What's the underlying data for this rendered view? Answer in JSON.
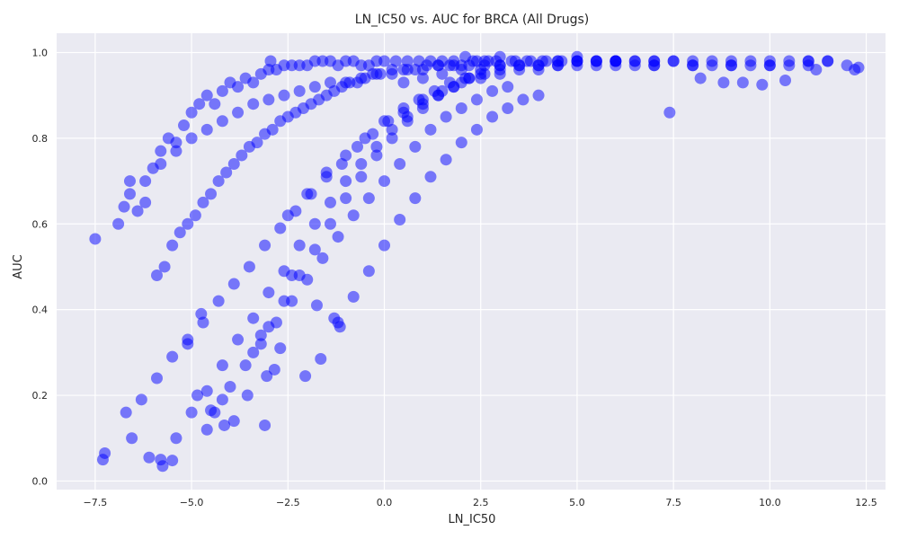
{
  "chart_data": {
    "type": "scatter",
    "title": "LN_IC50 vs. AUC for BRCA (All Drugs)",
    "xlabel": "LN_IC50",
    "ylabel": "AUC",
    "xlim": [
      -8.5,
      13.0
    ],
    "ylim": [
      -0.02,
      1.045
    ],
    "xticks": [
      -7.5,
      -5.0,
      -2.5,
      0.0,
      2.5,
      5.0,
      7.5,
      10.0,
      12.5
    ],
    "xtick_labels": [
      "−7.5",
      "−5.0",
      "−2.5",
      "0.0",
      "2.5",
      "5.0",
      "7.5",
      "10.0",
      "12.5"
    ],
    "yticks": [
      0.0,
      0.2,
      0.4,
      0.6,
      0.8,
      1.0
    ],
    "ytick_labels": [
      "0.0",
      "0.2",
      "0.4",
      "0.6",
      "0.8",
      "1.0"
    ],
    "grid": true,
    "legend": "none",
    "colors": {
      "points": "#0000ff",
      "plot_background": "#eaeaf2",
      "grid": "#ffffff",
      "text": "#262626"
    },
    "points_opacity": 0.5,
    "series": [
      {
        "x": [
          -7.5,
          -7.3,
          -7.25,
          -6.9,
          -6.75,
          -6.6,
          -6.55,
          -6.4,
          -6.2,
          -6.0,
          -5.8,
          -5.6,
          -5.4,
          -5.2,
          -5.0,
          -4.8,
          -4.6,
          -4.4,
          -4.2,
          -4.0,
          -3.8,
          -3.6,
          -3.4,
          -3.2,
          -3.0,
          -2.8,
          -2.6,
          -2.4,
          -2.2,
          -2.0,
          -1.8,
          -1.6,
          -1.4,
          -1.2,
          -1.0,
          -0.8,
          -0.6,
          -0.4,
          -0.2,
          0.0,
          0.3,
          0.6,
          0.9,
          1.2,
          1.5,
          1.8,
          2.1,
          2.4,
          2.7,
          3.0,
          3.4,
          3.8,
          4.2,
          4.6,
          5.0,
          5.5,
          6.0,
          6.5,
          7.0,
          7.5,
          8.0,
          8.5,
          9.0,
          9.5,
          10.0,
          10.5,
          11.0,
          11.5,
          12.0,
          12.3,
          -5.9,
          -5.7,
          -5.5,
          -5.3,
          -5.1,
          -4.9,
          -4.7,
          -4.5,
          -4.3,
          -4.1,
          -3.9,
          -3.7,
          -3.5,
          -3.3,
          -3.1,
          -2.9,
          -2.7,
          -2.5,
          -2.3,
          -2.1,
          -1.9,
          -1.7,
          -1.5,
          -1.3,
          -1.1,
          -0.9,
          -0.7,
          -0.5,
          -0.3,
          -0.1,
          0.2,
          0.5,
          0.8,
          1.1,
          1.4,
          1.7,
          2.0,
          2.3,
          2.6,
          2.9,
          3.3,
          3.7,
          4.1,
          4.5,
          5.0,
          5.5,
          6.0,
          -6.7,
          -6.3,
          -5.9,
          -5.5,
          -5.1,
          -4.7,
          -4.3,
          -3.9,
          -3.5,
          -3.1,
          -2.7,
          -2.3,
          -1.9,
          -1.5,
          -1.1,
          -0.7,
          -0.3,
          0.1,
          0.5,
          0.9,
          1.3,
          1.7,
          2.1,
          2.5,
          -5.8,
          -5.4,
          -5.0,
          -4.6,
          -4.2,
          -3.8,
          -3.4,
          -3.0,
          -2.6,
          -2.2,
          -1.8,
          -1.4,
          -1.0,
          -0.6,
          -0.2,
          0.2,
          0.6,
          1.0,
          1.4,
          1.8,
          2.2,
          2.6,
          3.0,
          -6.6,
          -6.2,
          -5.8,
          -5.4,
          -5.0,
          -4.6,
          -4.2,
          -3.8,
          -3.4,
          -3.0,
          -2.6,
          -2.2,
          -1.8,
          -1.4,
          -1.0,
          -0.6,
          -0.2,
          0.2,
          0.6,
          1.0,
          1.4,
          1.8,
          2.2,
          2.6,
          3.0,
          3.5,
          4.0,
          4.5,
          5.0,
          5.5,
          6.0,
          6.5,
          7.0,
          7.4,
          8.2,
          8.8,
          9.3,
          9.8,
          10.4,
          11.2,
          12.2,
          -4.6,
          -4.4,
          -4.2,
          -4.0,
          -3.6,
          -3.2,
          -2.8,
          -2.4,
          -2.0,
          -1.6,
          -1.2,
          -0.8,
          -0.4,
          0.0,
          0.4,
          0.8,
          1.2,
          1.6,
          2.0,
          2.4,
          2.8,
          3.2,
          -3.4,
          -3.0,
          -2.6,
          -2.2,
          -1.8,
          -1.4,
          -1.0,
          -0.6,
          -0.2,
          0.2,
          0.6,
          1.0,
          1.4,
          1.8,
          2.2,
          -2.5,
          -2.0,
          -1.5,
          -1.0,
          -0.5,
          0.0,
          0.5,
          1.0,
          1.5,
          2.0,
          2.5,
          3.0,
          3.5,
          4.0,
          4.5,
          5.0,
          6.0,
          7.0,
          8.0,
          9.0,
          10.0,
          11.0,
          0.5,
          1.0,
          1.5,
          2.0,
          2.5,
          3.0,
          3.5,
          4.0,
          4.5,
          5.0,
          5.5,
          6.0,
          6.5,
          7.0,
          7.5,
          8.0,
          8.5,
          9.0,
          9.5,
          10.0,
          10.5,
          11.0,
          11.5,
          -1.2,
          -0.8,
          -0.4,
          0.0,
          0.4,
          0.8,
          1.2,
          1.6,
          2.0,
          2.4,
          2.8,
          3.2,
          3.6,
          4.0,
          -6.1,
          -5.75,
          -5.5,
          -4.85,
          -4.5,
          -4.15,
          -3.9,
          -3.55,
          -3.1,
          -2.05,
          -1.65,
          -1.15,
          -3.05,
          -2.85,
          -3.2,
          -2.7,
          -1.3,
          -2.95,
          -5.1,
          -4.75,
          -2.4,
          -1.75
        ],
        "y": [
          0.565,
          0.05,
          0.065,
          0.6,
          0.64,
          0.7,
          0.1,
          0.63,
          0.65,
          0.73,
          0.77,
          0.8,
          0.79,
          0.83,
          0.86,
          0.88,
          0.9,
          0.88,
          0.91,
          0.93,
          0.92,
          0.94,
          0.93,
          0.95,
          0.96,
          0.96,
          0.97,
          0.97,
          0.97,
          0.97,
          0.98,
          0.98,
          0.98,
          0.97,
          0.98,
          0.98,
          0.97,
          0.97,
          0.98,
          0.98,
          0.98,
          0.98,
          0.98,
          0.98,
          0.98,
          0.98,
          0.99,
          0.98,
          0.98,
          0.99,
          0.98,
          0.98,
          0.98,
          0.98,
          0.99,
          0.98,
          0.98,
          0.98,
          0.98,
          0.98,
          0.97,
          0.97,
          0.97,
          0.97,
          0.97,
          0.97,
          0.98,
          0.98,
          0.97,
          0.965,
          0.48,
          0.5,
          0.55,
          0.58,
          0.6,
          0.62,
          0.65,
          0.67,
          0.7,
          0.72,
          0.74,
          0.76,
          0.78,
          0.79,
          0.81,
          0.82,
          0.84,
          0.85,
          0.86,
          0.87,
          0.88,
          0.89,
          0.9,
          0.91,
          0.92,
          0.93,
          0.93,
          0.94,
          0.95,
          0.95,
          0.96,
          0.96,
          0.96,
          0.97,
          0.97,
          0.97,
          0.97,
          0.98,
          0.98,
          0.98,
          0.98,
          0.98,
          0.98,
          0.98,
          0.98,
          0.98,
          0.98,
          0.16,
          0.19,
          0.24,
          0.29,
          0.33,
          0.37,
          0.42,
          0.46,
          0.5,
          0.55,
          0.59,
          0.63,
          0.67,
          0.71,
          0.74,
          0.78,
          0.81,
          0.84,
          0.86,
          0.89,
          0.91,
          0.93,
          0.94,
          0.95,
          0.05,
          0.1,
          0.16,
          0.21,
          0.27,
          0.33,
          0.38,
          0.44,
          0.49,
          0.55,
          0.6,
          0.65,
          0.7,
          0.74,
          0.78,
          0.82,
          0.85,
          0.88,
          0.9,
          0.92,
          0.94,
          0.95,
          0.96,
          0.67,
          0.7,
          0.74,
          0.77,
          0.8,
          0.82,
          0.84,
          0.86,
          0.88,
          0.89,
          0.9,
          0.91,
          0.92,
          0.93,
          0.93,
          0.94,
          0.95,
          0.95,
          0.96,
          0.96,
          0.97,
          0.97,
          0.97,
          0.97,
          0.97,
          0.97,
          0.97,
          0.97,
          0.98,
          0.97,
          0.98,
          0.97,
          0.97,
          0.86,
          0.94,
          0.93,
          0.93,
          0.925,
          0.935,
          0.96,
          0.96,
          0.12,
          0.16,
          0.19,
          0.22,
          0.27,
          0.32,
          0.37,
          0.42,
          0.47,
          0.52,
          0.57,
          0.62,
          0.66,
          0.7,
          0.74,
          0.78,
          0.82,
          0.85,
          0.87,
          0.89,
          0.91,
          0.92,
          0.3,
          0.36,
          0.42,
          0.48,
          0.54,
          0.6,
          0.66,
          0.71,
          0.76,
          0.8,
          0.84,
          0.87,
          0.9,
          0.92,
          0.94,
          0.62,
          0.67,
          0.72,
          0.76,
          0.8,
          0.84,
          0.87,
          0.89,
          0.91,
          0.93,
          0.94,
          0.95,
          0.96,
          0.96,
          0.97,
          0.97,
          0.97,
          0.97,
          0.97,
          0.97,
          0.97,
          0.97,
          0.93,
          0.94,
          0.95,
          0.96,
          0.96,
          0.97,
          0.97,
          0.97,
          0.98,
          0.98,
          0.98,
          0.98,
          0.98,
          0.98,
          0.98,
          0.98,
          0.98,
          0.98,
          0.98,
          0.98,
          0.98,
          0.98,
          0.98,
          0.37,
          0.43,
          0.49,
          0.55,
          0.61,
          0.66,
          0.71,
          0.75,
          0.79,
          0.82,
          0.85,
          0.87,
          0.89,
          0.9,
          0.055,
          0.035,
          0.048,
          0.2,
          0.165,
          0.13,
          0.14,
          0.2,
          0.13,
          0.245,
          0.285,
          0.36,
          0.245,
          0.26,
          0.34,
          0.31,
          0.38,
          0.98,
          0.32,
          0.39,
          0.48,
          0.41
        ]
      }
    ]
  }
}
